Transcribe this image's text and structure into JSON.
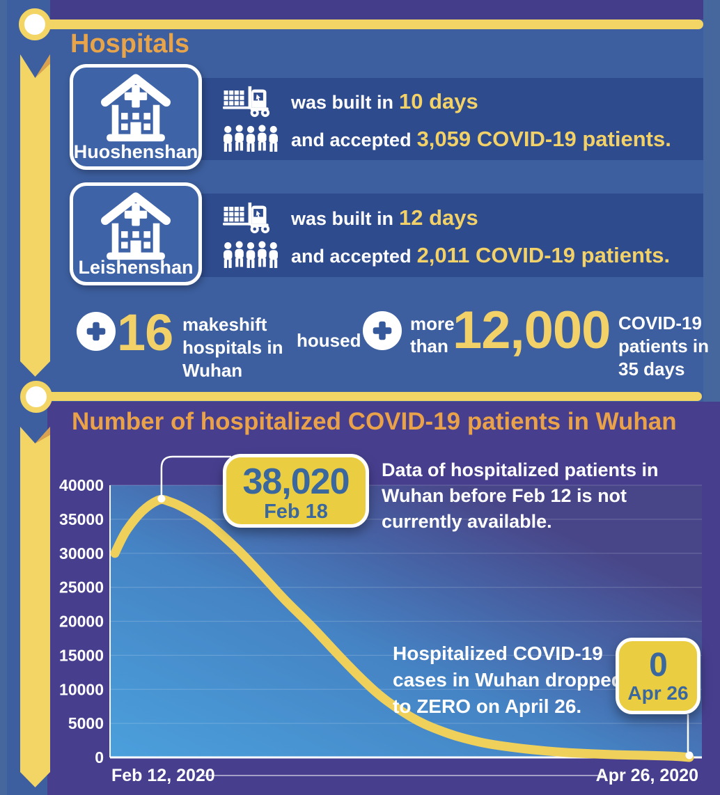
{
  "colors": {
    "panel_blue": "#3D5F9F",
    "band_blue": "#2E4B8D",
    "card_blue": "#3E63A7",
    "purple": "#473F8E",
    "accent_yellow": "#F3D565",
    "text_yellow": "#F2D268",
    "badge_yellow": "#EBCD41",
    "badge_text_blue": "#3A689E",
    "title_orange": "#E8A44A",
    "fold_orange": "#D9A050",
    "curve_yellow": "#EFD05A"
  },
  "icons": {
    "hospital": "hospital-building-icon",
    "forklift": "forklift-construction-icon",
    "crowd": "patients-crowd-icon",
    "cross": "medical-cross-icon"
  },
  "hospitals": {
    "title": "Hospitals",
    "cards": [
      {
        "name": "Huoshenshan",
        "built_prefix": "was built in",
        "built_value": "10 days",
        "accepted_prefix": "and accepted",
        "accepted_value": "3,059 COVID-19 patients."
      },
      {
        "name": "Leishenshan",
        "built_prefix": "was built in",
        "built_value": "12 days",
        "accepted_prefix": "and accepted",
        "accepted_value": "2,011 COVID-19 patients."
      }
    ],
    "makeshift": {
      "count": "16",
      "label": "makeshift hospitals in Wuhan",
      "housed": "housed",
      "more_than": "more than",
      "patients_count": "12,000",
      "patients_label": "COVID-19 patients in 35 days"
    }
  },
  "chart_section": {
    "note_top": "Data of hospitalized patients in Wuhan before Feb 12 is not currently available.",
    "note_bottom": "Hospitalized COVID-19 cases in Wuhan dropped to ZERO on April 26."
  },
  "chart_data": {
    "type": "area",
    "title": "Number of hospitalized COVID-19 patients in Wuhan",
    "xlabel": "",
    "ylabel": "",
    "x_start_label": "Feb 12, 2020",
    "x_end_label": "Apr 26, 2020",
    "x_days": 74,
    "ylim": [
      0,
      40000
    ],
    "y_ticks": [
      0,
      5000,
      10000,
      15000,
      20000,
      25000,
      30000,
      35000,
      40000
    ],
    "grid": true,
    "legend": "none",
    "line_color": "#EFD05A",
    "series": [
      {
        "name": "Hospitalized COVID-19 patients in Wuhan",
        "points": [
          [
            0,
            30000
          ],
          [
            1,
            32500
          ],
          [
            2,
            34200
          ],
          [
            3,
            35600
          ],
          [
            4,
            36700
          ],
          [
            5,
            37500
          ],
          [
            6,
            38020
          ],
          [
            7,
            37600
          ],
          [
            8,
            37200
          ],
          [
            10,
            36000
          ],
          [
            12,
            34500
          ],
          [
            14,
            32500
          ],
          [
            16,
            30400
          ],
          [
            18,
            28000
          ],
          [
            20,
            25500
          ],
          [
            22,
            23000
          ],
          [
            24,
            20800
          ],
          [
            26,
            18500
          ],
          [
            28,
            16000
          ],
          [
            30,
            13600
          ],
          [
            32,
            11300
          ],
          [
            34,
            9200
          ],
          [
            36,
            7500
          ],
          [
            38,
            6000
          ],
          [
            40,
            4800
          ],
          [
            42,
            3900
          ],
          [
            44,
            3100
          ],
          [
            46,
            2500
          ],
          [
            48,
            2000
          ],
          [
            51,
            1500
          ],
          [
            54,
            1100
          ],
          [
            57,
            800
          ],
          [
            60,
            600
          ],
          [
            63,
            450
          ],
          [
            66,
            350
          ],
          [
            69,
            280
          ],
          [
            72,
            200
          ],
          [
            74,
            0
          ]
        ]
      }
    ],
    "annotations": [
      {
        "day": 6,
        "value": 38020,
        "label": "38,020",
        "sublabel": "Feb 18"
      },
      {
        "day": 74,
        "value": 0,
        "label": "0",
        "sublabel": "Apr 26"
      }
    ]
  }
}
